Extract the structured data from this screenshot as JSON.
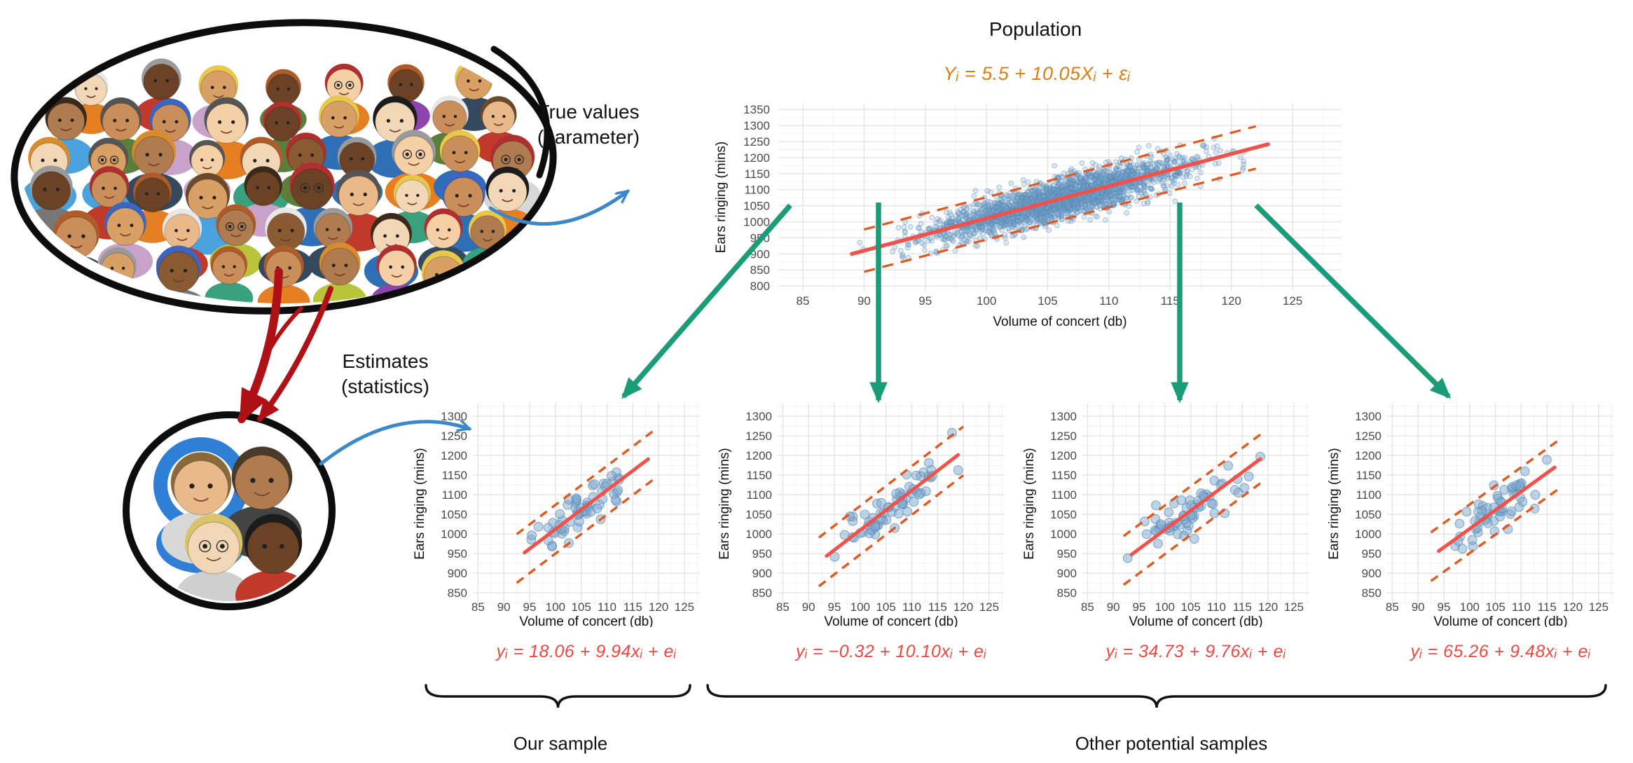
{
  "side_labels": {
    "true_values": "True values\n(parameter)",
    "estimates": "Estimates\n(statistics)"
  },
  "population": {
    "title": "Population"
  },
  "equations": {
    "population": "Yᵢ = 5.5 + 10.05Xᵢ + εᵢ",
    "sample1": "yᵢ = 18.06 + 9.94xᵢ + eᵢ",
    "sample2": "yᵢ = −0.32 + 10.10xᵢ + eᵢ",
    "sample3": "yᵢ = 34.73 + 9.76xᵢ + eᵢ",
    "sample4": "yᵢ = 65.26 + 9.48xᵢ + eᵢ"
  },
  "brace_labels": {
    "our_sample": "Our sample",
    "other_samples": "Other potential samples"
  },
  "colors": {
    "scatter_point": "#7FA8CD",
    "scatter_point_stroke": "#4E86B4",
    "regression_line": "#F0524A",
    "band_dashed": "#E4571E",
    "population_equation": "#E07C12",
    "sample_equation": "#F2473F",
    "green_arrow": "#199C77",
    "red_arrow": "#AF1117",
    "blue_arrow": "#3C87C7",
    "brace": "#111111",
    "tick_label": "#4A4A4A",
    "axis_title": "#111111",
    "grid_major": "#E4E4E4",
    "grid_minor": "#F2F2F2"
  },
  "chart_data": [
    {
      "id": "population",
      "type": "scatter",
      "kind": "large",
      "title": "Population",
      "xlabel": "Volume of concert (db)",
      "ylabel": "Ears ringing (mins)",
      "x_ticks": [
        85,
        90,
        95,
        100,
        105,
        110,
        115,
        120,
        125
      ],
      "y_ticks": [
        800,
        850,
        900,
        950,
        1000,
        1050,
        1100,
        1150,
        1200,
        1250,
        1300,
        1350
      ],
      "xlim": [
        83,
        129
      ],
      "ylim": [
        785,
        1368
      ],
      "regression": {
        "intercept": 5.5,
        "slope": 10.05,
        "x_start": 89,
        "x_end": 123
      },
      "band": {
        "offset": 66,
        "x_start": 90,
        "x_end": 122
      },
      "points": {
        "n": 2600,
        "x_mean": 106,
        "x_sd": 5.2,
        "x_min": 88.7,
        "x_max": 124.3,
        "noise_sd": 31,
        "seed": 20,
        "radius": 3.4,
        "opacity": 0.26
      }
    },
    {
      "id": "sample1",
      "type": "scatter",
      "kind": "small",
      "xlabel": "Volume of concert (db)",
      "ylabel": "Ears ringing (mins)",
      "x_ticks": [
        85,
        90,
        95,
        100,
        105,
        110,
        115,
        120,
        125
      ],
      "y_ticks": [
        850,
        900,
        950,
        1000,
        1050,
        1100,
        1150,
        1200,
        1250,
        1300
      ],
      "xlim": [
        84,
        128
      ],
      "ylim": [
        820,
        1334
      ],
      "regression": {
        "intercept": 18.06,
        "slope": 9.94,
        "x_start": 94,
        "x_end": 118
      },
      "band": {
        "offset": 62,
        "x_start": 92.5,
        "x_end": 119.5
      },
      "points": {
        "n": 62,
        "x_mean": 105.8,
        "x_sd": 5.0,
        "x_min": 93.5,
        "x_max": 118.5,
        "noise_sd": 27,
        "seed": 101,
        "radius": 6.4,
        "opacity": 0.5
      }
    },
    {
      "id": "sample2",
      "type": "scatter",
      "kind": "small",
      "xlabel": "Volume of concert (db)",
      "ylabel": "Ears ringing (mins)",
      "x_ticks": [
        85,
        90,
        95,
        100,
        105,
        110,
        115,
        120,
        125
      ],
      "y_ticks": [
        850,
        900,
        950,
        1000,
        1050,
        1100,
        1150,
        1200,
        1250,
        1300
      ],
      "xlim": [
        84,
        128
      ],
      "ylim": [
        820,
        1334
      ],
      "regression": {
        "intercept": -0.32,
        "slope": 10.1,
        "x_start": 93.5,
        "x_end": 119
      },
      "band": {
        "offset": 62,
        "x_start": 92,
        "x_end": 120
      },
      "points": {
        "n": 64,
        "x_mean": 105.8,
        "x_sd": 5.0,
        "x_min": 93.2,
        "x_max": 119,
        "noise_sd": 27,
        "seed": 202,
        "radius": 6.4,
        "opacity": 0.5
      }
    },
    {
      "id": "sample3",
      "type": "scatter",
      "kind": "small",
      "xlabel": "Volume of concert (db)",
      "ylabel": "Ears ringing (mins)",
      "x_ticks": [
        85,
        90,
        95,
        100,
        105,
        110,
        115,
        120,
        125
      ],
      "y_ticks": [
        850,
        900,
        950,
        1000,
        1050,
        1100,
        1150,
        1200,
        1250,
        1300
      ],
      "xlim": [
        84,
        128
      ],
      "ylim": [
        820,
        1334
      ],
      "regression": {
        "intercept": 34.73,
        "slope": 9.76,
        "x_start": 93.5,
        "x_end": 118.5
      },
      "band": {
        "offset": 62,
        "x_start": 92,
        "x_end": 119.5
      },
      "points": {
        "n": 63,
        "x_mean": 105.5,
        "x_sd": 5.0,
        "x_min": 92.8,
        "x_max": 118.5,
        "noise_sd": 27,
        "seed": 303,
        "radius": 6.4,
        "opacity": 0.5
      }
    },
    {
      "id": "sample4",
      "type": "scatter",
      "kind": "small",
      "xlabel": "Volume of concert (db)",
      "ylabel": "Ears ringing (mins)",
      "x_ticks": [
        85,
        90,
        95,
        100,
        105,
        110,
        115,
        120,
        125
      ],
      "y_ticks": [
        850,
        900,
        950,
        1000,
        1050,
        1100,
        1150,
        1200,
        1250,
        1300
      ],
      "xlim": [
        84,
        128
      ],
      "ylim": [
        820,
        1334
      ],
      "regression": {
        "intercept": 65.26,
        "slope": 9.48,
        "x_start": 94,
        "x_end": 116.5
      },
      "band": {
        "offset": 62,
        "x_start": 92.5,
        "x_end": 117.5
      },
      "points": {
        "n": 58,
        "x_mean": 105.5,
        "x_sd": 4.6,
        "x_min": 93.5,
        "x_max": 117,
        "noise_sd": 26,
        "seed": 404,
        "radius": 6.4,
        "opacity": 0.5
      }
    }
  ]
}
